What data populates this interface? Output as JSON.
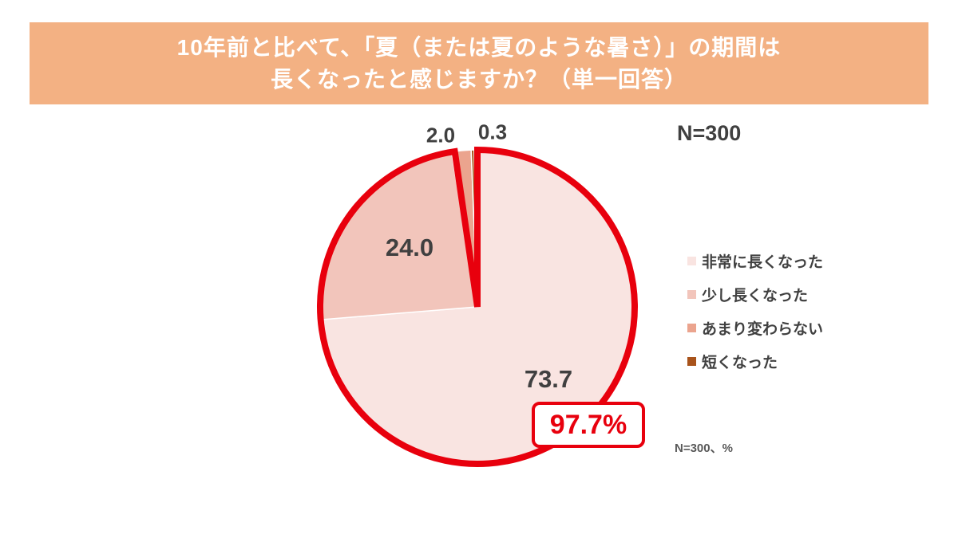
{
  "header": {
    "line1": "10年前と比べて、「夏（または夏のような暑さ）」の期間は",
    "line2": "長くなったと感じますか？（単一回答）",
    "bg_color": "#f3b183",
    "text_color": "#ffffff"
  },
  "annotations": {
    "sample_size": "N=300",
    "footnote": "N=300、%"
  },
  "chart_data": {
    "type": "pie",
    "title": "10年前と比べて、「夏（または夏のような暑さ）」の期間は長くなったと感じますか？（単一回答）",
    "n": 300,
    "unit": "%",
    "start_angle_deg": 0,
    "direction": "clockwise",
    "legend_position": "right",
    "slices": [
      {
        "label": "非常に長くなった",
        "value": 73.7,
        "display": "73.7",
        "color": "#f9e4e1"
      },
      {
        "label": "少し長くなった",
        "value": 24.0,
        "display": "24.0",
        "color": "#f2c5bb"
      },
      {
        "label": "あまり変わらない",
        "value": 2.0,
        "display": "2.0",
        "color": "#eba48e"
      },
      {
        "label": "短くなった",
        "value": 0.3,
        "display": "0.3",
        "color": "#a8531b"
      }
    ],
    "highlight": {
      "label": "97.7%",
      "value": 97.7,
      "includes": [
        "非常に長くなった",
        "少し長くなった"
      ],
      "outline_color": "#e8000d"
    }
  }
}
